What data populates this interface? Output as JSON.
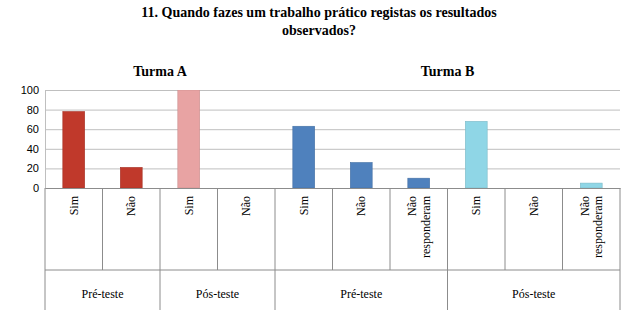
{
  "chart_data": {
    "type": "bar",
    "title": "11. Quando fazes um trabalho prático registas os resultados observados?",
    "categories": [
      "Sim",
      "Não",
      "Sim",
      "Não",
      "Sim",
      "Não",
      "Não responderam",
      "Sim",
      "Não",
      "Não responderam"
    ],
    "values": [
      78,
      21,
      100,
      0,
      63,
      26,
      10,
      68,
      0,
      5
    ],
    "colors": [
      "#c0392b",
      "#c0392b",
      "#e8a3a3",
      "#e8a3a3",
      "#4f81bd",
      "#4f81bd",
      "#4f81bd",
      "#8fd6e6",
      "#8fd6e6",
      "#8fd6e6"
    ],
    "groups": [
      {
        "label": "Pré-teste",
        "size": 2
      },
      {
        "label": "Pós-teste",
        "size": 2
      },
      {
        "label": "Pré-teste",
        "size": 3
      },
      {
        "label": "Pós-teste",
        "size": 3
      }
    ],
    "panels": [
      {
        "label": "Turma A",
        "size": 4
      },
      {
        "label": "Turma B",
        "size": 6
      }
    ],
    "ylim": [
      0,
      100
    ],
    "yticks": [
      0,
      20,
      40,
      60,
      80,
      100
    ],
    "grid": true
  }
}
